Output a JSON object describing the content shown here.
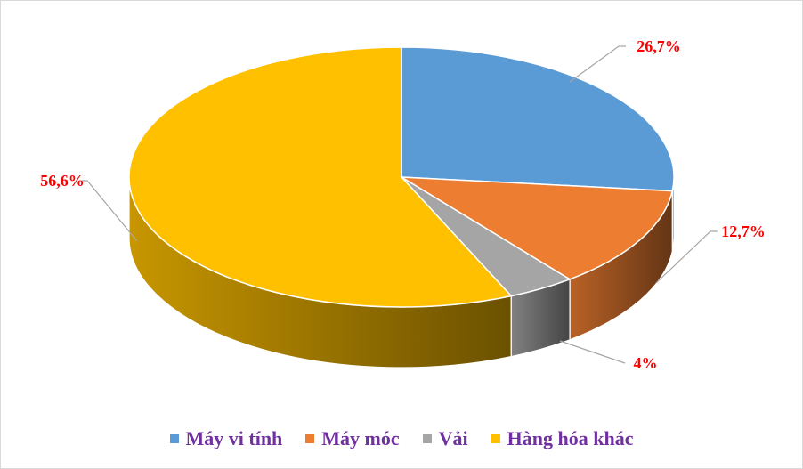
{
  "chart_data": {
    "type": "pie",
    "title": "",
    "categories": [
      "Máy vi tính",
      "Máy móc",
      "Vải",
      "Hàng hóa khác"
    ],
    "values": [
      26.7,
      12.7,
      4,
      56.6
    ],
    "data_labels": [
      "26,7%",
      "12,7%",
      "4%",
      "56,6%"
    ],
    "colors": [
      "#5b9bd5",
      "#ed7d31",
      "#a5a5a5",
      "#ffc000"
    ],
    "label_color": "#ff0000",
    "legend_text_color": "#7030a0",
    "legend_position": "bottom",
    "style": "3d-pie"
  }
}
